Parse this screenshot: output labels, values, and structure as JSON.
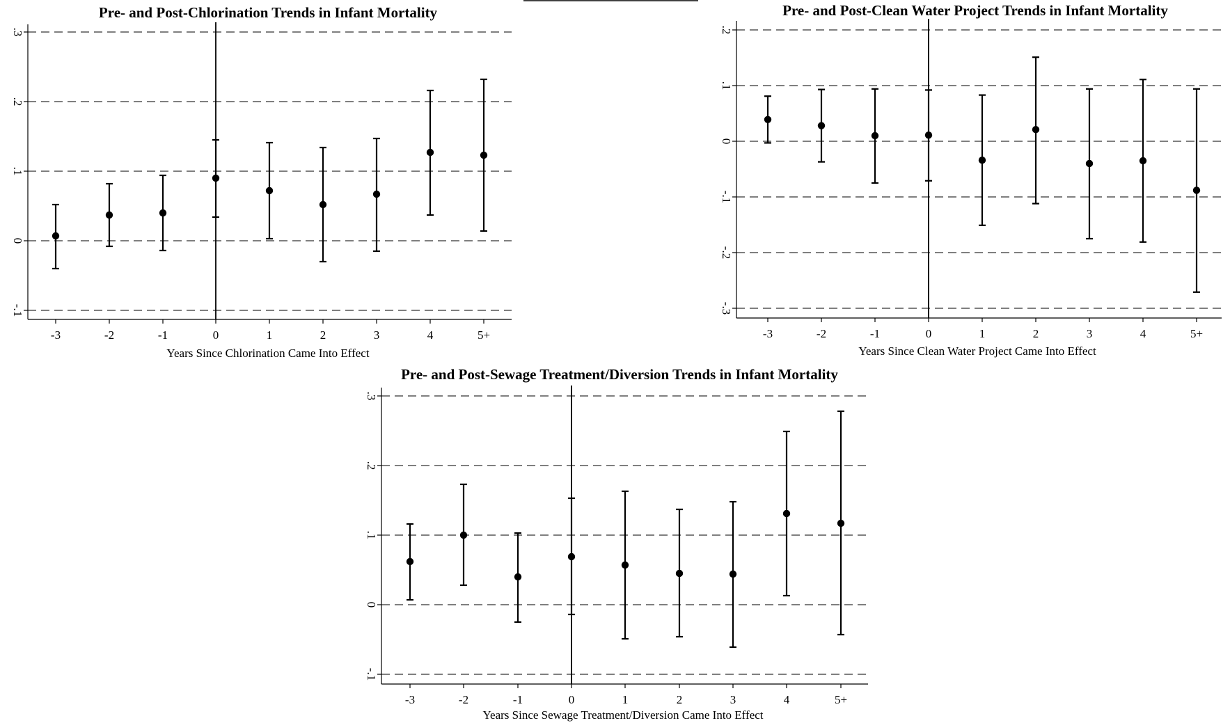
{
  "chart_data": [
    {
      "type": "scatter",
      "title": "Pre- and Post-Chlorination Trends in Infant Mortality",
      "xlabel": "Years Since Chlorination Came Into Effect",
      "ylabel": "",
      "categories": [
        "-3",
        "-2",
        "-1",
        "0",
        "1",
        "2",
        "3",
        "4",
        "5+"
      ],
      "values": [
        0.007,
        0.037,
        0.04,
        0.09,
        0.072,
        0.052,
        0.067,
        0.127,
        0.123
      ],
      "ci_low": [
        -0.04,
        -0.008,
        -0.014,
        0.034,
        0.003,
        -0.03,
        -0.015,
        0.037,
        0.014
      ],
      "ci_high": [
        0.052,
        0.082,
        0.094,
        0.145,
        0.141,
        0.134,
        0.147,
        0.216,
        0.232
      ],
      "ylim": [
        -0.11,
        0.31
      ],
      "yticks": [
        -0.1,
        0,
        0.1,
        0.2,
        0.3
      ],
      "ytick_labels": [
        "-.1",
        "0",
        ".1",
        ".2",
        ".3"
      ],
      "grid": "dashed at y ticks",
      "vertical_line_at": "0"
    },
    {
      "type": "scatter",
      "title": "Pre- and Post-Clean Water Project Trends in Infant Mortality",
      "xlabel": "Years Since Clean Water Project Came Into Effect",
      "ylabel": "",
      "categories": [
        "-3",
        "-2",
        "-1",
        "0",
        "1",
        "2",
        "3",
        "4",
        "5+"
      ],
      "values": [
        0.039,
        0.028,
        0.01,
        0.011,
        -0.034,
        0.021,
        -0.04,
        -0.035,
        -0.088
      ],
      "ci_low": [
        -0.003,
        -0.037,
        -0.075,
        -0.071,
        -0.151,
        -0.112,
        -0.175,
        -0.181,
        -0.271
      ],
      "ci_high": [
        0.081,
        0.093,
        0.094,
        0.092,
        0.083,
        0.151,
        0.094,
        0.111,
        0.094
      ],
      "ylim": [
        -0.315,
        0.22
      ],
      "yticks": [
        -0.3,
        -0.2,
        -0.1,
        0,
        0.1,
        0.2
      ],
      "ytick_labels": [
        "-.3",
        "-.2",
        "-.1",
        "0",
        ".1",
        ".2"
      ],
      "grid": "dashed at y ticks",
      "vertical_line_at": "0"
    },
    {
      "type": "scatter",
      "title": "Pre- and Post-Sewage Treatment/Diversion Trends in Infant Mortality",
      "xlabel": "Years Since Sewage Treatment/Diversion Came Into Effect",
      "ylabel": "",
      "categories": [
        "-3",
        "-2",
        "-1",
        "0",
        "1",
        "2",
        "3",
        "4",
        "5+"
      ],
      "values": [
        0.062,
        0.1,
        0.04,
        0.069,
        0.057,
        0.045,
        0.044,
        0.131,
        0.117
      ],
      "ci_low": [
        0.007,
        0.028,
        -0.025,
        -0.014,
        -0.049,
        -0.046,
        -0.061,
        0.013,
        -0.043
      ],
      "ci_high": [
        0.116,
        0.173,
        0.103,
        0.153,
        0.163,
        0.137,
        0.148,
        0.249,
        0.278
      ],
      "ylim": [
        -0.11,
        0.31
      ],
      "yticks": [
        -0.1,
        0,
        0.1,
        0.2,
        0.3
      ],
      "ytick_labels": [
        "-.1",
        "0",
        ".1",
        ".2",
        ".3"
      ],
      "grid": "dashed at y ticks",
      "vertical_line_at": "0"
    }
  ]
}
